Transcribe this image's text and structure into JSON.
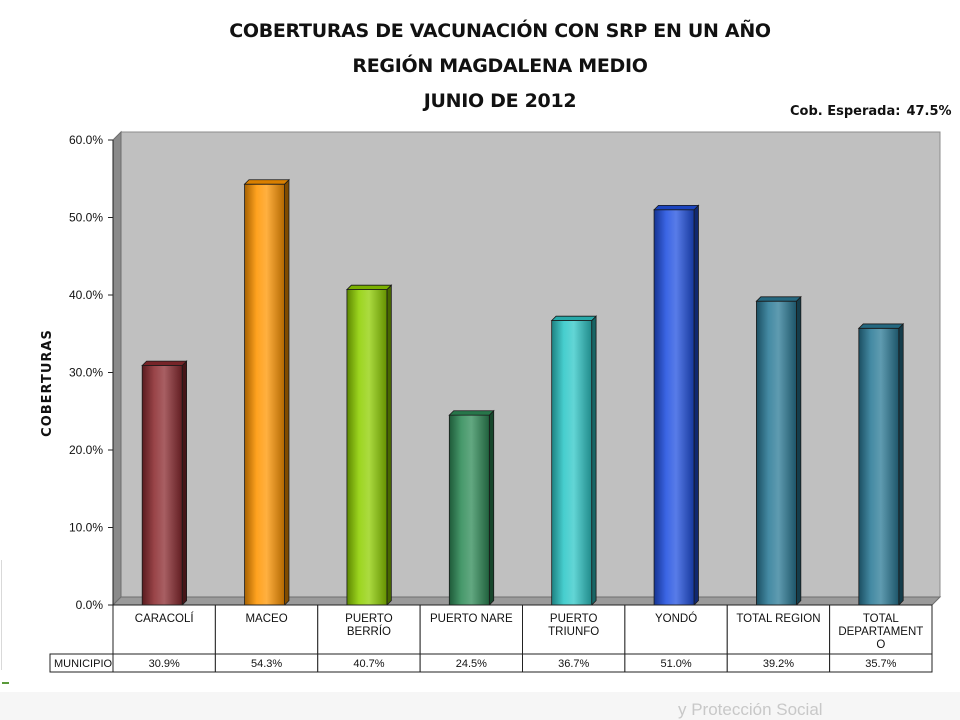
{
  "title_lines": [
    "COBERTURAS DE VACUNACIÓN CON SRP EN UN AÑO",
    "REGIÓN MAGDALENA MEDIO",
    "JUNIO DE 2012"
  ],
  "expected_label": "Cob. Esperada:",
  "expected_value": "47.5%",
  "footer_text": "y Protección Social",
  "chart_data": {
    "type": "bar",
    "title": "COBERTURAS DE VACUNACIÓN CON SRP EN UN AÑO REGIÓN MAGDALENA MEDIO JUNIO DE 2012",
    "ylabel": "COBERTURAS",
    "ylim": [
      0,
      60
    ],
    "yticks": [
      "0.0%",
      "10.0%",
      "20.0%",
      "30.0%",
      "40.0%",
      "50.0%",
      "60.0%"
    ],
    "ytick_values": [
      0,
      10,
      20,
      30,
      40,
      50,
      60
    ],
    "grid": false,
    "legend": "none",
    "categories": [
      [
        "CARACOLÍ"
      ],
      [
        "MACEO"
      ],
      [
        "PUERTO",
        "BERRÍO"
      ],
      [
        "PUERTO NARE"
      ],
      [
        "PUERTO",
        "TRIUNFO"
      ],
      [
        "YONDÓ"
      ],
      [
        "TOTAL REGION"
      ],
      [
        "TOTAL",
        "DEPARTAMENT",
        "O"
      ]
    ],
    "values": [
      30.9,
      54.3,
      40.7,
      24.5,
      36.7,
      51.0,
      39.2,
      35.7
    ],
    "table_row_label": "MUNICIPIO",
    "table_values": [
      "30.9%",
      "54.3%",
      "40.7%",
      "24.5%",
      "36.7%",
      "51.0%",
      "39.2%",
      "35.7%"
    ],
    "colors": [
      "#8b2a2f",
      "#ff9500",
      "#8fcf00",
      "#2e8b57",
      "#2ec7c7",
      "#2050e0",
      "#2a7a96",
      "#2a7a96"
    ],
    "plot_background": "#c0c0c0",
    "expected_coverage": 47.5
  }
}
